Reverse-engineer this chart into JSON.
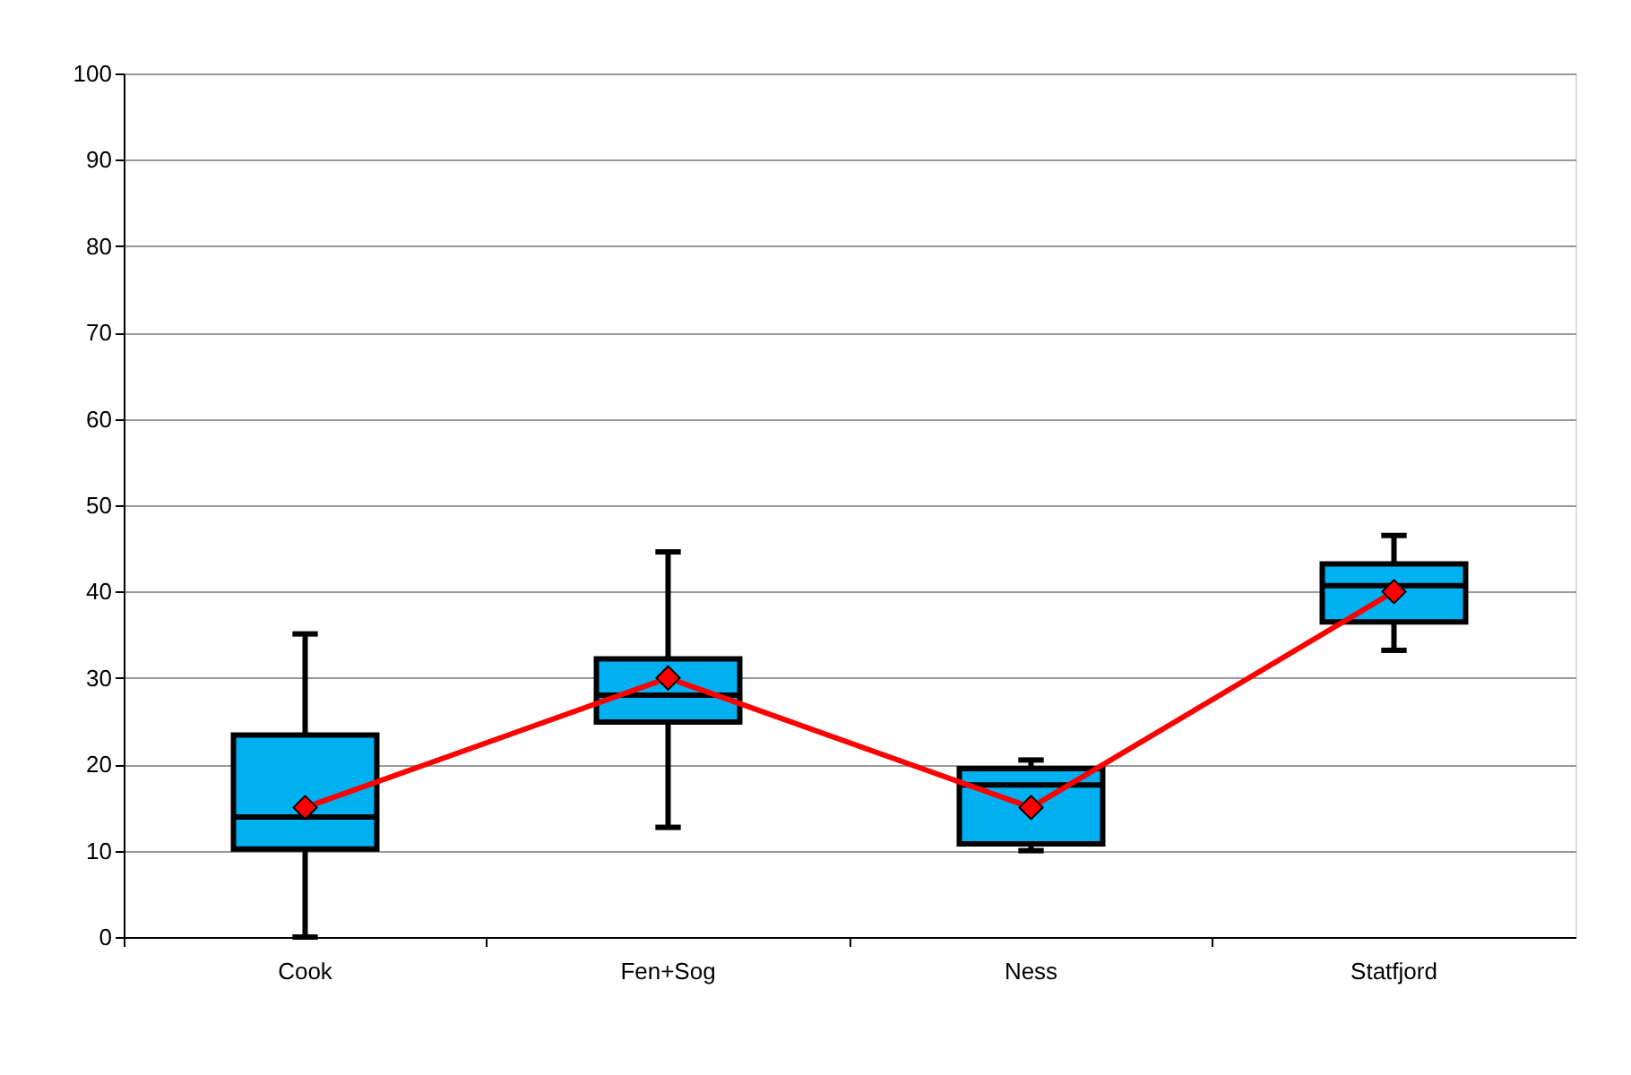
{
  "chart_data": {
    "type": "box",
    "categories": [
      "Cook",
      "Fen+Sog",
      "Ness",
      "Statfjord"
    ],
    "ylim": [
      0,
      100
    ],
    "yticks": [
      0,
      10,
      20,
      30,
      40,
      50,
      60,
      70,
      80,
      90,
      100
    ],
    "grid": "y",
    "series": [
      {
        "type": "box",
        "color": "#00b0f0",
        "boxes": [
          {
            "low": 0,
            "q1": 10.2,
            "median": 13.9,
            "q3": 23.4,
            "high": 35.1
          },
          {
            "low": 12.7,
            "q1": 24.9,
            "median": 28,
            "q3": 32.2,
            "high": 44.6
          },
          {
            "low": 10,
            "q1": 10.8,
            "median": 17.6,
            "q3": 19.5,
            "high": 20.5
          },
          {
            "low": 33.2,
            "q1": 36.5,
            "median": 40.7,
            "q3": 43.2,
            "high": 46.5
          }
        ]
      },
      {
        "type": "line",
        "color": "#ff0000",
        "marker": "diamond",
        "values": [
          15,
          30,
          15,
          40
        ]
      }
    ]
  }
}
